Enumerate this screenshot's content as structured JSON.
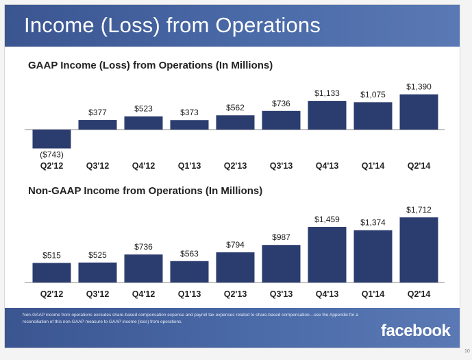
{
  "page_title": "Income (Loss) from Operations",
  "footnote": "Non-GAAP income from operations excludes share-based compensation expense and payroll tax expenses related to share-based compensation—see the Appendix for a reconciliation of this non-GAAP measure to GAAP income (loss) from operations.",
  "brand": "facebook",
  "page_number": "10",
  "colors": {
    "bar": "#2b3c6e",
    "header": "#4a6aa8",
    "axis": "#888888"
  },
  "chart_data": [
    {
      "type": "bar",
      "title": "GAAP Income (Loss) from Operations (In Millions)",
      "categories": [
        "Q2'12",
        "Q3'12",
        "Q4'12",
        "Q1'13",
        "Q2'13",
        "Q3'13",
        "Q4'13",
        "Q1'14",
        "Q2'14"
      ],
      "values": [
        -743,
        377,
        523,
        373,
        562,
        736,
        1133,
        1075,
        1390
      ],
      "labels": [
        "($743)",
        "$377",
        "$523",
        "$373",
        "$562",
        "$736",
        "$1,133",
        "$1,075",
        "$1,390"
      ]
    },
    {
      "type": "bar",
      "title": "Non-GAAP Income from Operations (In Millions)",
      "categories": [
        "Q2'12",
        "Q3'12",
        "Q4'12",
        "Q1'13",
        "Q2'13",
        "Q3'13",
        "Q4'13",
        "Q1'14",
        "Q2'14"
      ],
      "values": [
        515,
        525,
        736,
        563,
        794,
        987,
        1459,
        1374,
        1712
      ],
      "labels": [
        "$515",
        "$525",
        "$736",
        "$563",
        "$794",
        "$987",
        "$1,459",
        "$1,374",
        "$1,712"
      ]
    }
  ]
}
